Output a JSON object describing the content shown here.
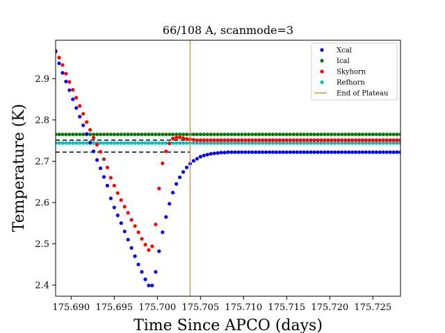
{
  "chart_data": {
    "type": "scatter",
    "title": "66/108 A, scanmode=3",
    "xlabel": "Time Since APCO (days)",
    "ylabel": "Temperature (K)",
    "xlim": [
      175.6882,
      175.7282
    ],
    "ylim": [
      2.373,
      2.993
    ],
    "xticks": [
      175.69,
      175.695,
      175.7,
      175.705,
      175.71,
      175.715,
      175.72,
      175.725
    ],
    "xtick_labels": [
      "175.690",
      "175.695",
      "175.700",
      "175.705",
      "175.710",
      "175.715",
      "175.720",
      "175.725"
    ],
    "yticks": [
      2.4,
      2.5,
      2.6,
      2.7,
      2.8,
      2.9
    ],
    "ytick_labels": [
      "2.4",
      "2.5",
      "2.6",
      "2.7",
      "2.8",
      "2.9"
    ],
    "grid": false,
    "legend": "top-right",
    "series": [
      {
        "name": "Xcal",
        "color": "#0000ff",
        "x": [
          175.6882,
          175.6886,
          175.689,
          175.6894,
          175.6898,
          175.6902,
          175.6906,
          175.691,
          175.6914,
          175.6918,
          175.6922,
          175.6926,
          175.693,
          175.6934,
          175.6938,
          175.6942,
          175.6946,
          175.695,
          175.6954,
          175.6958,
          175.6962,
          175.6966,
          175.697,
          175.6974,
          175.6978,
          175.6982,
          175.6986,
          175.699,
          175.6994,
          175.6998,
          175.7002,
          175.7006,
          175.701,
          175.7014,
          175.7018,
          175.7022,
          175.7026,
          175.703,
          175.7034,
          175.7038,
          175.7042,
          175.7046,
          175.705,
          175.7054,
          175.7058,
          175.7062,
          175.7066,
          175.707,
          175.7074,
          175.7078,
          175.7082,
          175.7086,
          175.709,
          175.7094,
          175.7098,
          175.7102,
          175.7106,
          175.711,
          175.7114,
          175.7118,
          175.7122,
          175.7126,
          175.713,
          175.7134,
          175.7138,
          175.7142,
          175.7146,
          175.715,
          175.7154,
          175.7158,
          175.7162,
          175.7166,
          175.717,
          175.7174,
          175.7178,
          175.7182,
          175.7186,
          175.719,
          175.7194,
          175.7198,
          175.7202,
          175.7206,
          175.721,
          175.7214,
          175.7218,
          175.7222,
          175.7226,
          175.723,
          175.7234,
          175.7238,
          175.7242,
          175.7246,
          175.725,
          175.7254,
          175.7258,
          175.7262,
          175.7266,
          175.727,
          175.7274,
          175.7278,
          175.7282
        ],
        "y": [
          2.967,
          2.937,
          2.914,
          2.893,
          2.872,
          2.85,
          2.829,
          2.808,
          2.787,
          2.766,
          2.745,
          2.724,
          2.703,
          2.683,
          2.662,
          2.641,
          2.61,
          2.588,
          2.569,
          2.55,
          2.53,
          2.51,
          2.49,
          2.47,
          2.45,
          2.432,
          2.414,
          2.399,
          2.399,
          2.432,
          2.482,
          2.528,
          2.565,
          2.597,
          2.624,
          2.645,
          2.661,
          2.674,
          2.685,
          2.694,
          2.701,
          2.706,
          2.711,
          2.714,
          2.716,
          2.718,
          2.719,
          2.72,
          2.721,
          2.721,
          2.722,
          2.722,
          2.722,
          2.722,
          2.722,
          2.722,
          2.722,
          2.722,
          2.722,
          2.722,
          2.722,
          2.722,
          2.722,
          2.722,
          2.722,
          2.722,
          2.722,
          2.722,
          2.722,
          2.722,
          2.722,
          2.722,
          2.722,
          2.722,
          2.722,
          2.722,
          2.722,
          2.722,
          2.722,
          2.722,
          2.722,
          2.722,
          2.722,
          2.722,
          2.722,
          2.722,
          2.722,
          2.722,
          2.722,
          2.722,
          2.722,
          2.722,
          2.722,
          2.722,
          2.722,
          2.722,
          2.722,
          2.722,
          2.722,
          2.722,
          2.722
        ]
      },
      {
        "name": "Ical",
        "color": "#008000",
        "x_start": 175.6882,
        "x_step": 0.0004,
        "count": 101,
        "y_const": 2.765
      },
      {
        "name": "Skyhorn",
        "color": "#ff0000",
        "x": [
          175.6882,
          175.6886,
          175.689,
          175.6894,
          175.6898,
          175.6902,
          175.6906,
          175.691,
          175.6914,
          175.6918,
          175.6922,
          175.6926,
          175.693,
          175.6934,
          175.6938,
          175.6942,
          175.6946,
          175.695,
          175.6954,
          175.6958,
          175.6962,
          175.6966,
          175.697,
          175.6974,
          175.6978,
          175.6982,
          175.6986,
          175.699,
          175.6994,
          175.6998,
          175.7002,
          175.7006,
          175.701,
          175.7014,
          175.7018,
          175.7022,
          175.7026,
          175.703,
          175.7034,
          175.7038,
          175.7042,
          175.7046,
          175.705,
          175.7054,
          175.7058,
          175.7062,
          175.7066,
          175.707,
          175.7074,
          175.7078,
          175.7082,
          175.7086,
          175.709,
          175.7094,
          175.7098,
          175.7102,
          175.7106,
          175.711,
          175.7114,
          175.7118,
          175.7122,
          175.7126,
          175.713,
          175.7134,
          175.7138,
          175.7142,
          175.7146,
          175.715,
          175.7154,
          175.7158,
          175.7162,
          175.7166,
          175.717,
          175.7174,
          175.7178,
          175.7182,
          175.7186,
          175.719,
          175.7194,
          175.7198,
          175.7202,
          175.7206,
          175.721,
          175.7214,
          175.7218,
          175.7222,
          175.7226,
          175.723,
          175.7234,
          175.7238,
          175.7242,
          175.7246,
          175.725,
          175.7254,
          175.7258,
          175.7262,
          175.7266,
          175.727,
          175.7274,
          175.7278,
          175.7282
        ],
        "y": [
          2.965,
          2.951,
          2.933,
          2.912,
          2.892,
          2.873,
          2.854,
          2.834,
          2.815,
          2.795,
          2.776,
          2.757,
          2.74,
          2.723,
          2.705,
          2.685,
          2.66,
          2.641,
          2.623,
          2.606,
          2.59,
          2.575,
          2.558,
          2.543,
          2.528,
          2.512,
          2.498,
          2.485,
          2.494,
          2.547,
          2.634,
          2.695,
          2.724,
          2.743,
          2.755,
          2.757,
          2.758,
          2.756,
          2.754,
          2.753,
          2.752,
          2.751,
          2.751,
          2.751,
          2.751,
          2.751,
          2.751,
          2.751,
          2.751,
          2.751,
          2.751,
          2.751,
          2.751,
          2.751,
          2.751,
          2.751,
          2.751,
          2.751,
          2.751,
          2.751,
          2.751,
          2.751,
          2.751,
          2.751,
          2.751,
          2.751,
          2.751,
          2.751,
          2.751,
          2.751,
          2.751,
          2.751,
          2.751,
          2.751,
          2.751,
          2.751,
          2.751,
          2.751,
          2.751,
          2.751,
          2.751,
          2.751,
          2.751,
          2.751,
          2.751,
          2.751,
          2.751,
          2.751,
          2.751,
          2.751,
          2.751,
          2.751,
          2.751,
          2.751,
          2.751,
          2.751,
          2.751,
          2.751,
          2.751,
          2.751,
          2.751
        ]
      },
      {
        "name": "Refhorn",
        "color": "#00bfbf",
        "x_start": 175.6882,
        "x_step": 0.0004,
        "count": 101,
        "y_const": 2.744
      },
      {
        "name": "End of Plateau",
        "color": "#e69422",
        "kind": "vline",
        "x": 175.7038
      }
    ],
    "reference_lines": [
      {
        "y": 2.751,
        "style": "dashed",
        "color": "#000000",
        "x_end": 175.7038
      },
      {
        "y": 2.722,
        "style": "dashed",
        "color": "#000000",
        "x_end": 175.7038
      }
    ]
  }
}
